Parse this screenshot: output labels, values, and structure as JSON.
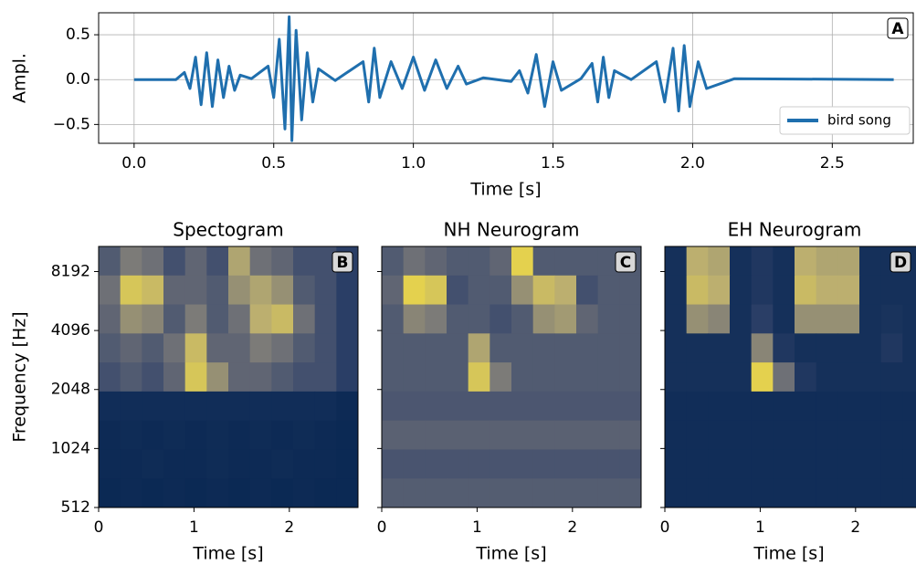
{
  "chart_data": [
    {
      "type": "line",
      "label": "A",
      "xlabel": "Time [s]",
      "ylabel": "Ampl.",
      "x": [
        0,
        0.15,
        0.18,
        0.2,
        0.22,
        0.24,
        0.26,
        0.28,
        0.3,
        0.32,
        0.34,
        0.36,
        0.38,
        0.42,
        0.48,
        0.5,
        0.52,
        0.54,
        0.555,
        0.565,
        0.58,
        0.6,
        0.62,
        0.64,
        0.66,
        0.72,
        0.82,
        0.84,
        0.86,
        0.88,
        0.92,
        0.96,
        1.0,
        1.04,
        1.08,
        1.12,
        1.16,
        1.19,
        1.25,
        1.35,
        1.38,
        1.41,
        1.44,
        1.47,
        1.5,
        1.53,
        1.6,
        1.64,
        1.66,
        1.68,
        1.7,
        1.72,
        1.78,
        1.87,
        1.9,
        1.93,
        1.95,
        1.97,
        1.99,
        2.02,
        2.05,
        2.15,
        2.72
      ],
      "series": [
        {
          "name": "bird song",
          "color": "#1f6fae",
          "values": [
            0,
            0,
            0.08,
            -0.1,
            0.25,
            -0.28,
            0.3,
            -0.3,
            0.22,
            -0.2,
            0.15,
            -0.12,
            0.05,
            0.01,
            0.15,
            -0.2,
            0.45,
            -0.55,
            0.7,
            -0.68,
            0.55,
            -0.45,
            0.3,
            -0.25,
            0.12,
            -0.01,
            0.2,
            -0.25,
            0.35,
            -0.2,
            0.2,
            -0.1,
            0.25,
            -0.12,
            0.22,
            -0.1,
            0.15,
            -0.05,
            0.02,
            -0.02,
            0.1,
            -0.15,
            0.28,
            -0.3,
            0.2,
            -0.12,
            0.01,
            0.18,
            -0.25,
            0.25,
            -0.2,
            0.1,
            0,
            0.2,
            -0.25,
            0.35,
            -0.35,
            0.38,
            -0.3,
            0.2,
            -0.1,
            0.01,
            0
          ]
        }
      ],
      "xlim": [
        -0.127,
        2.79
      ],
      "ylim": [
        -0.71,
        0.745
      ],
      "xticks": [
        {
          "value": 0,
          "label": "0.0"
        },
        0.5,
        {
          "value": 1,
          "label": "1.0"
        },
        1.5,
        {
          "value": 2,
          "label": "2.0"
        },
        2.5
      ],
      "yticks": [
        {
          "value": -0.5,
          "label": "−0.5"
        },
        {
          "value": 0,
          "label": "0.0"
        },
        0.5
      ],
      "grid": true,
      "legend": "lower right"
    },
    {
      "type": "heatmap",
      "title": "Spectogram",
      "label": "B",
      "xlabel": "Time [s]",
      "ylabel": "Frequency [Hz]",
      "xlim": [
        0,
        2.72
      ],
      "ylim": [
        512,
        11000
      ],
      "yscale": "log",
      "xticks": [
        0,
        1,
        2
      ],
      "yticks": [
        512,
        1024,
        2048,
        4096,
        8192
      ],
      "colormap": [
        "#00224e",
        "#35456c",
        "#7c7b78",
        "#bcaf6f",
        "#fee838"
      ],
      "z": [
        [
          0.35,
          0.5,
          0.45,
          0.3,
          0.4,
          0.3,
          0.7,
          0.45,
          0.4,
          0.3,
          0.3,
          0.2
        ],
        [
          0.45,
          0.85,
          0.8,
          0.4,
          0.4,
          0.35,
          0.6,
          0.7,
          0.6,
          0.35,
          0.3,
          0.2
        ],
        [
          0.4,
          0.6,
          0.55,
          0.35,
          0.5,
          0.35,
          0.45,
          0.75,
          0.8,
          0.45,
          0.3,
          0.2
        ],
        [
          0.35,
          0.4,
          0.35,
          0.45,
          0.8,
          0.4,
          0.4,
          0.5,
          0.45,
          0.35,
          0.3,
          0.2
        ],
        [
          0.3,
          0.35,
          0.3,
          0.4,
          0.85,
          0.6,
          0.4,
          0.4,
          0.35,
          0.3,
          0.3,
          0.2
        ],
        [
          0.08,
          0.08,
          0.08,
          0.08,
          0.08,
          0.08,
          0.08,
          0.08,
          0.08,
          0.08,
          0.08,
          0.06
        ],
        [
          0.06,
          0.07,
          0.06,
          0.07,
          0.06,
          0.07,
          0.06,
          0.07,
          0.06,
          0.07,
          0.06,
          0.05
        ],
        [
          0.06,
          0.06,
          0.07,
          0.06,
          0.06,
          0.07,
          0.06,
          0.06,
          0.07,
          0.06,
          0.06,
          0.05
        ],
        [
          0.05,
          0.06,
          0.05,
          0.06,
          0.05,
          0.06,
          0.05,
          0.06,
          0.05,
          0.06,
          0.05,
          0.05
        ]
      ]
    },
    {
      "type": "heatmap",
      "title": "NH Neurogram",
      "label": "C",
      "xlabel": "Time [s]",
      "xlim": [
        0,
        2.72
      ],
      "ylim": [
        512,
        11000
      ],
      "yscale": "log",
      "xticks": [
        0,
        1,
        2
      ],
      "yticks": [
        512,
        1024,
        2048,
        4096,
        8192
      ],
      "ytick_labels": false,
      "colormap": [
        "#00224e",
        "#35456c",
        "#7c7b78",
        "#bcaf6f",
        "#fee838"
      ],
      "z": [
        [
          0.35,
          0.45,
          0.4,
          0.35,
          0.35,
          0.4,
          0.9,
          0.35,
          0.35,
          0.35,
          0.35,
          0.35
        ],
        [
          0.4,
          0.9,
          0.85,
          0.3,
          0.35,
          0.35,
          0.6,
          0.8,
          0.75,
          0.3,
          0.35,
          0.35
        ],
        [
          0.35,
          0.55,
          0.5,
          0.35,
          0.35,
          0.3,
          0.35,
          0.6,
          0.65,
          0.4,
          0.35,
          0.35
        ],
        [
          0.35,
          0.35,
          0.35,
          0.35,
          0.7,
          0.35,
          0.35,
          0.35,
          0.35,
          0.35,
          0.35,
          0.35
        ],
        [
          0.35,
          0.35,
          0.35,
          0.35,
          0.85,
          0.5,
          0.35,
          0.35,
          0.35,
          0.35,
          0.35,
          0.35
        ],
        [
          0.33,
          0.33,
          0.33,
          0.33,
          0.33,
          0.33,
          0.33,
          0.33,
          0.33,
          0.33,
          0.33,
          0.33
        ],
        [
          0.38,
          0.38,
          0.38,
          0.38,
          0.38,
          0.38,
          0.38,
          0.38,
          0.38,
          0.38,
          0.38,
          0.38
        ],
        [
          0.32,
          0.32,
          0.32,
          0.32,
          0.32,
          0.32,
          0.32,
          0.32,
          0.32,
          0.32,
          0.32,
          0.32
        ],
        [
          0.36,
          0.36,
          0.36,
          0.36,
          0.36,
          0.36,
          0.36,
          0.36,
          0.36,
          0.36,
          0.36,
          0.36
        ]
      ]
    },
    {
      "type": "heatmap",
      "title": "EH Neurogram",
      "label": "D",
      "xlabel": "Time [s]",
      "xlim": [
        0,
        2.72
      ],
      "ylim": [
        512,
        11000
      ],
      "yscale": "log",
      "xticks": [
        0,
        1,
        2
      ],
      "yticks": [
        512,
        1024,
        2048,
        4096,
        8192
      ],
      "ytick_labels": false,
      "colormap": [
        "#00224e",
        "#35456c",
        "#7c7b78",
        "#bcaf6f",
        "#fee838"
      ],
      "z": [
        [
          0.1,
          0.75,
          0.7,
          0.1,
          0.15,
          0.1,
          0.75,
          0.7,
          0.7,
          0.1,
          0.1,
          0.1
        ],
        [
          0.1,
          0.8,
          0.75,
          0.1,
          0.15,
          0.1,
          0.8,
          0.75,
          0.75,
          0.1,
          0.1,
          0.1
        ],
        [
          0.1,
          0.6,
          0.55,
          0.1,
          0.2,
          0.1,
          0.6,
          0.6,
          0.6,
          0.1,
          0.12,
          0.1
        ],
        [
          0.1,
          0.1,
          0.1,
          0.1,
          0.55,
          0.15,
          0.1,
          0.1,
          0.1,
          0.1,
          0.15,
          0.1
        ],
        [
          0.1,
          0.1,
          0.1,
          0.1,
          0.9,
          0.45,
          0.15,
          0.1,
          0.1,
          0.1,
          0.1,
          0.1
        ],
        [
          0.08,
          0.08,
          0.08,
          0.08,
          0.08,
          0.08,
          0.08,
          0.08,
          0.08,
          0.08,
          0.08,
          0.08
        ],
        [
          0.08,
          0.08,
          0.08,
          0.08,
          0.08,
          0.08,
          0.08,
          0.08,
          0.08,
          0.08,
          0.08,
          0.08
        ],
        [
          0.08,
          0.08,
          0.08,
          0.08,
          0.08,
          0.08,
          0.08,
          0.08,
          0.08,
          0.08,
          0.08,
          0.08
        ],
        [
          0.08,
          0.08,
          0.08,
          0.08,
          0.08,
          0.08,
          0.08,
          0.08,
          0.08,
          0.08,
          0.08,
          0.08
        ]
      ]
    }
  ]
}
